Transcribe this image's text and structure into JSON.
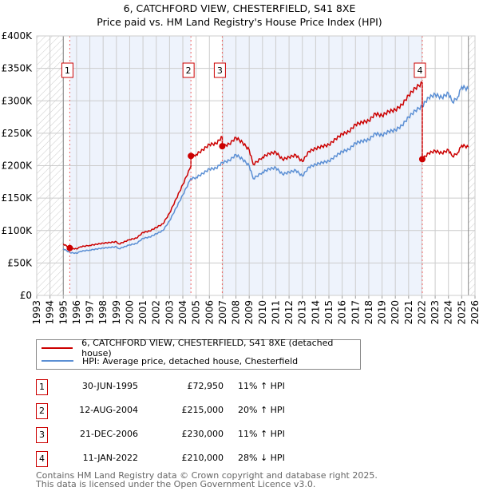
{
  "title": "6, CATCHFORD VIEW, CHESTERFIELD, S41 8XE",
  "subtitle": "Price paid vs. HM Land Registry's House Price Index (HPI)",
  "colors": {
    "property": "#cc0000",
    "hpi": "#5b8fd4",
    "shade": "#eef3fc"
  },
  "chart_data": {
    "type": "line",
    "xlim": [
      1993,
      2026
    ],
    "ylim": [
      0,
      400000
    ],
    "x_ticks": [
      "1993",
      "1994",
      "1995",
      "1996",
      "1997",
      "1998",
      "1999",
      "2000",
      "2001",
      "2002",
      "2003",
      "2004",
      "2005",
      "2006",
      "2007",
      "2008",
      "2009",
      "2010",
      "2011",
      "2012",
      "2013",
      "2014",
      "2015",
      "2016",
      "2017",
      "2018",
      "2019",
      "2020",
      "2021",
      "2022",
      "2023",
      "2024",
      "2025",
      "2026"
    ],
    "y_ticks": [
      {
        "v": 0,
        "label": "£0"
      },
      {
        "v": 50000,
        "label": "£50K"
      },
      {
        "v": 100000,
        "label": "£100K"
      },
      {
        "v": 150000,
        "label": "£150K"
      },
      {
        "v": 200000,
        "label": "£200K"
      },
      {
        "v": 250000,
        "label": "£250K"
      },
      {
        "v": 300000,
        "label": "£300K"
      },
      {
        "v": 350000,
        "label": "£350K"
      },
      {
        "v": 400000,
        "label": "£400K"
      }
    ],
    "data_range": [
      1995.0,
      2025.5
    ],
    "hpi": [
      [
        1995.0,
        72000
      ],
      [
        1995.5,
        66000
      ],
      [
        1996,
        65000
      ],
      [
        1996.3,
        68000
      ],
      [
        1997,
        70000
      ],
      [
        1998,
        73000
      ],
      [
        1999,
        75000
      ],
      [
        1999.2,
        72000
      ],
      [
        2000,
        78000
      ],
      [
        2000.5,
        80000
      ],
      [
        2001,
        88000
      ],
      [
        2001.5,
        90000
      ],
      [
        2002,
        95000
      ],
      [
        2002.5,
        100000
      ],
      [
        2003,
        115000
      ],
      [
        2003.5,
        135000
      ],
      [
        2004,
        155000
      ],
      [
        2004.6,
        180000
      ],
      [
        2005,
        182000
      ],
      [
        2005.5,
        188000
      ],
      [
        2006,
        195000
      ],
      [
        2006.5,
        196000
      ],
      [
        2006.97,
        205000
      ],
      [
        2007.5,
        208000
      ],
      [
        2008,
        217000
      ],
      [
        2008.5,
        210000
      ],
      [
        2009,
        200000
      ],
      [
        2009.3,
        180000
      ],
      [
        2010,
        190000
      ],
      [
        2010.5,
        195000
      ],
      [
        2011,
        197000
      ],
      [
        2011.5,
        187000
      ],
      [
        2012,
        190000
      ],
      [
        2012.5,
        193000
      ],
      [
        2013,
        184000
      ],
      [
        2013.5,
        198000
      ],
      [
        2014,
        202000
      ],
      [
        2014.5,
        205000
      ],
      [
        2015,
        207000
      ],
      [
        2015.5,
        215000
      ],
      [
        2016,
        222000
      ],
      [
        2016.5,
        225000
      ],
      [
        2017,
        235000
      ],
      [
        2017.5,
        238000
      ],
      [
        2018,
        240000
      ],
      [
        2018.5,
        250000
      ],
      [
        2019,
        247000
      ],
      [
        2019.5,
        253000
      ],
      [
        2020,
        255000
      ],
      [
        2020.5,
        262000
      ],
      [
        2021,
        275000
      ],
      [
        2021.5,
        285000
      ],
      [
        2022.03,
        292000
      ],
      [
        2022.5,
        305000
      ],
      [
        2023,
        310000
      ],
      [
        2023.5,
        305000
      ],
      [
        2024,
        312000
      ],
      [
        2024.3,
        298000
      ],
      [
        2024.7,
        306000
      ],
      [
        2025,
        322000
      ],
      [
        2025.5,
        318000
      ]
    ],
    "sales": [
      {
        "n": "1",
        "x": 1995.49,
        "date": "30-JUN-1995",
        "price": 72950,
        "price_label": "£72,950",
        "hpi_label": "11% ↑ HPI"
      },
      {
        "n": "2",
        "x": 2004.61,
        "date": "12-AUG-2004",
        "price": 215000,
        "price_label": "£215,000",
        "hpi_label": "20% ↑ HPI"
      },
      {
        "n": "3",
        "x": 2006.97,
        "date": "21-DEC-2006",
        "price": 230000,
        "price_label": "£230,000",
        "hpi_label": "11% ↑ HPI"
      },
      {
        "n": "4",
        "x": 2022.03,
        "date": "11-JAN-2022",
        "price": 210000,
        "price_label": "£210,000",
        "hpi_label": "28% ↓ HPI"
      }
    ],
    "legend": [
      "6, CATCHFORD VIEW, CHESTERFIELD, S41 8XE (detached house)",
      "HPI: Average price, detached house, Chesterfield"
    ]
  },
  "footer": [
    "Contains HM Land Registry data © Crown copyright and database right 2025.",
    "This data is licensed under the Open Government Licence v3.0."
  ]
}
